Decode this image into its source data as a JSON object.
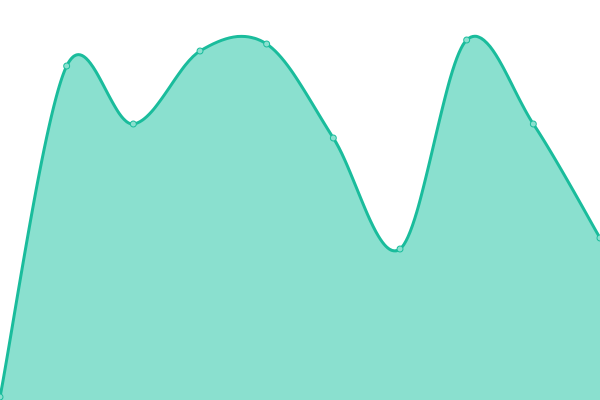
{
  "chart_data": {
    "type": "area",
    "x": [
      0,
      1,
      2,
      3,
      4,
      5,
      6,
      7,
      8,
      9
    ],
    "values": [
      3,
      334,
      276,
      349,
      356,
      262,
      151,
      360,
      276,
      162
    ],
    "ylim": [
      0,
      400
    ],
    "xlim": [
      0,
      9
    ],
    "title": "",
    "xlabel": "",
    "ylabel": "",
    "grid": false,
    "curve": "smooth",
    "colors": {
      "line": "#1abc9c",
      "fill": "#8ae0cf",
      "marker": "#8ae0cf"
    }
  }
}
